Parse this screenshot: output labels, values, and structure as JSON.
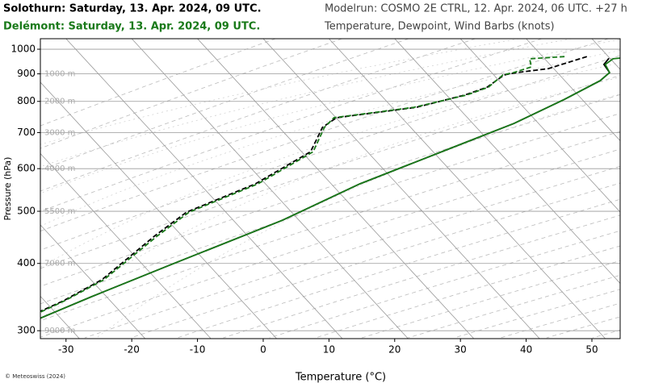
{
  "chart_data": {
    "type": "skewt",
    "model_run": "Modelrun: COSMO 2E CTRL, 12. Apr. 2024, 06 UTC. +27 h",
    "subtitle": "Temperature, Dewpoint, Wind Barbs (knots)",
    "xlabel": "Temperature (°C)",
    "ylabel": "Pressure (hPa)",
    "credit": "© Meteoswiss (2024)",
    "log_y": true,
    "grid": true,
    "xlim": [
      -33.9,
      54.3
    ],
    "ylim": [
      1046,
      290
    ],
    "xticks": [
      -30,
      -20,
      -10,
      0,
      10,
      20,
      30,
      40,
      50
    ],
    "yticks": [
      300,
      400,
      500,
      600,
      700,
      800,
      900,
      1000
    ],
    "altitude_labels": [
      {
        "pressure": 300,
        "label": "9000 m"
      },
      {
        "pressure": 400,
        "label": "7000 m"
      },
      {
        "pressure": 500,
        "label": "5500 m"
      },
      {
        "pressure": 600,
        "label": "4000 m"
      },
      {
        "pressure": 700,
        "label": "3000 m"
      },
      {
        "pressure": 800,
        "label": "2000 m"
      },
      {
        "pressure": 900,
        "label": "1000 m"
      }
    ],
    "series": [
      {
        "name": "Solothurn: Saturday, 13. Apr. 2024, 09 UTC.",
        "color": "#000000",
        "temperature_pressure": [
          962,
          937,
          905,
          874,
          807,
          728,
          668,
          562,
          481,
          398,
          347,
          302,
          290
        ],
        "temperature": [
          13.3,
          13.4,
          15.4,
          15.1,
          12.3,
          8.0,
          3.0,
          -7.0,
          -13.7,
          -24.4,
          -32.0,
          -39.2,
          -40.5
        ],
        "dewpoint_pressure": [
          969,
          920,
          905,
          896,
          850,
          822,
          780,
          746,
          716,
          645,
          562,
          498,
          450,
          373,
          341,
          290
        ],
        "dewpoint": [
          9.7,
          5.5,
          1.3,
          -0.3,
          -1.2,
          -3.5,
          -9.1,
          -19.8,
          -20.6,
          -19.0,
          -22.9,
          -29.4,
          -30.9,
          -32.8,
          -35.7,
          -43.0
        ]
      },
      {
        "name": "Delémont: Saturday, 13. Apr. 2024, 09 UTC.",
        "color": "#1a7a1a",
        "temperature_pressure": [
          969,
          960,
          937,
          905,
          874,
          807,
          728,
          668,
          562,
          481,
          398,
          347,
          302,
          290
        ],
        "temperature": [
          17.0,
          14.0,
          13.6,
          15.4,
          15.1,
          12.3,
          8.0,
          3.0,
          -7.0,
          -13.7,
          -24.4,
          -32.0,
          -39.2,
          -40.5
        ],
        "dewpoint_pressure": [
          969,
          960,
          927,
          905,
          896,
          850,
          822,
          780,
          746,
          716,
          645,
          562,
          498,
          450,
          373,
          341,
          290
        ],
        "dewpoint": [
          6.3,
          1.3,
          2.7,
          0.8,
          -0.5,
          -1.0,
          -3.2,
          -9.5,
          -20.2,
          -20.3,
          -18.6,
          -22.5,
          -29.0,
          -30.5,
          -32.5,
          -35.5,
          -42.5
        ]
      }
    ]
  }
}
